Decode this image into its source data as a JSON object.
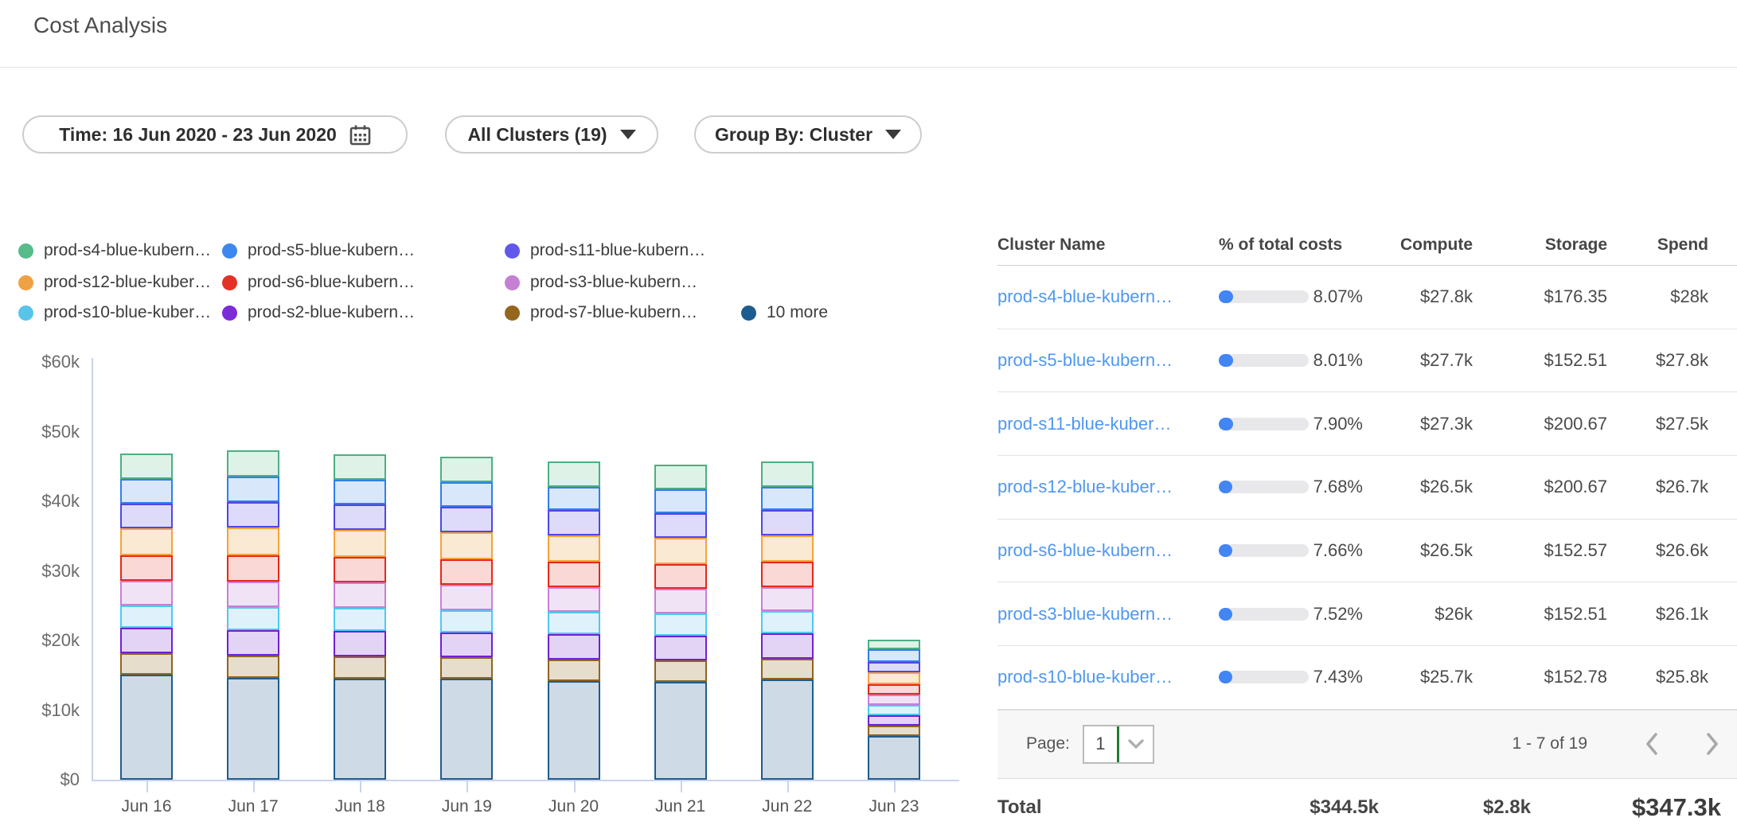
{
  "page": {
    "title": "Cost Analysis"
  },
  "filters": {
    "time": {
      "label": "Time: 16 Jun 2020 - 23 Jun 2020",
      "icon": "calendar-icon"
    },
    "clusters": {
      "label": "All Clusters (19)",
      "icon": "triangle-down-icon"
    },
    "group_by": {
      "label": "Group By: Cluster",
      "icon": "triangle-down-icon"
    }
  },
  "colors": {
    "link_blue": "#4e97f0",
    "progress_fill": "#4285f4",
    "progress_track": "#e8e8ea",
    "axis_line": "#c9d3ee",
    "select_divider_green": "#1e7e34",
    "pagination_bg": "#f7f7f7"
  },
  "chart_data": {
    "type": "bar",
    "stacked": true,
    "title": "",
    "xlabel": "",
    "ylabel": "",
    "x": [
      "Jun 16",
      "Jun 17",
      "Jun 18",
      "Jun 19",
      "Jun 20",
      "Jun 21",
      "Jun 22",
      "Jun 23"
    ],
    "y_ticks": [
      "$0",
      "$10k",
      "$20k",
      "$30k",
      "$40k",
      "$50k",
      "$60k"
    ],
    "ylim": [
      0,
      60000
    ],
    "grid": false,
    "legend_position": "top-left",
    "units": "USD thousands per day",
    "legend": [
      {
        "label": "prod-s4-blue-kubern…",
        "color": "#57bb8a"
      },
      {
        "label": "prod-s5-blue-kubern…",
        "color": "#3d87ee"
      },
      {
        "label": "prod-s11-blue-kubern…",
        "color": "#6158ea"
      },
      {
        "label": "prod-s12-blue-kuber…",
        "color": "#f0a143"
      },
      {
        "label": "prod-s6-blue-kubern…",
        "color": "#e33225"
      },
      {
        "label": "prod-s3-blue-kubern…",
        "color": "#c57fd3"
      },
      {
        "label": "prod-s10-blue-kuber…",
        "color": "#58c4ea"
      },
      {
        "label": "prod-s2-blue-kubern…",
        "color": "#7c2bd9"
      },
      {
        "label": "prod-s7-blue-kubern…",
        "color": "#95661e"
      },
      {
        "label": "10 more",
        "color": "#1d5c8f"
      }
    ],
    "series_note": "values in $k per day, listed bottom-to-top of stack",
    "series": [
      {
        "name": "10 more",
        "color": "#1f5c8c",
        "fill": "#cedae5",
        "values": [
          15.1,
          14.6,
          14.5,
          14.5,
          14.2,
          14.1,
          14.4,
          6.3
        ]
      },
      {
        "name": "prod-s7-blue-kubern…",
        "color": "#8f6420",
        "fill": "#e6ddcc",
        "values": [
          3.1,
          3.2,
          3.2,
          3.1,
          3.1,
          3.0,
          3.0,
          1.5
        ]
      },
      {
        "name": "prod-s2-blue-kubern…",
        "color": "#6f21d3",
        "fill": "#e3d4f6",
        "values": [
          3.6,
          3.7,
          3.7,
          3.6,
          3.6,
          3.6,
          3.6,
          1.5
        ]
      },
      {
        "name": "prod-s10-blue-kuber…",
        "color": "#4fc8ef",
        "fill": "#dff2fb",
        "values": [
          3.2,
          3.3,
          3.3,
          3.2,
          3.2,
          3.2,
          3.2,
          1.4
        ]
      },
      {
        "name": "prod-s3-blue-kubern…",
        "color": "#c77fd6",
        "fill": "#f1e3f6",
        "values": [
          3.6,
          3.7,
          3.6,
          3.6,
          3.6,
          3.5,
          3.5,
          1.5
        ]
      },
      {
        "name": "prod-s6-blue-kubern…",
        "color": "#e6281a",
        "fill": "#f9d8d5",
        "values": [
          3.6,
          3.7,
          3.7,
          3.7,
          3.6,
          3.6,
          3.6,
          1.5
        ]
      },
      {
        "name": "prod-s12-blue-kuber…",
        "color": "#f5a23b",
        "fill": "#fae9d3",
        "values": [
          3.9,
          4.0,
          3.9,
          3.9,
          3.8,
          3.8,
          3.8,
          1.7
        ]
      },
      {
        "name": "prod-s11-blue-kubern…",
        "color": "#4f46e5",
        "fill": "#dddbf9",
        "values": [
          3.6,
          3.7,
          3.7,
          3.6,
          3.6,
          3.5,
          3.6,
          1.5
        ]
      },
      {
        "name": "prod-s5-blue-kubern…",
        "color": "#2f7fee",
        "fill": "#d9e7fb",
        "values": [
          3.5,
          3.6,
          3.5,
          3.5,
          3.4,
          3.4,
          3.4,
          1.8
        ]
      },
      {
        "name": "prod-s4-blue-kubern…",
        "color": "#4caf82",
        "fill": "#dff2e7",
        "values": [
          3.7,
          3.8,
          3.7,
          3.7,
          3.6,
          3.6,
          3.6,
          1.4
        ]
      }
    ]
  },
  "table": {
    "columns": [
      "Cluster Name",
      "% of total costs",
      "Compute",
      "Storage",
      "Spend"
    ],
    "rows": [
      {
        "name": "prod-s4-blue-kubern…",
        "pct": "8.07%",
        "pct_value": 8.07,
        "compute": "$27.8k",
        "storage": "$176.35",
        "spend": "$28k"
      },
      {
        "name": "prod-s5-blue-kubern…",
        "pct": "8.01%",
        "pct_value": 8.01,
        "compute": "$27.7k",
        "storage": "$152.51",
        "spend": "$27.8k"
      },
      {
        "name": "prod-s11-blue-kuber…",
        "pct": "7.90%",
        "pct_value": 7.9,
        "compute": "$27.3k",
        "storage": "$200.67",
        "spend": "$27.5k"
      },
      {
        "name": "prod-s12-blue-kuber…",
        "pct": "7.68%",
        "pct_value": 7.68,
        "compute": "$26.5k",
        "storage": "$200.67",
        "spend": "$26.7k"
      },
      {
        "name": "prod-s6-blue-kubern…",
        "pct": "7.66%",
        "pct_value": 7.66,
        "compute": "$26.5k",
        "storage": "$152.57",
        "spend": "$26.6k"
      },
      {
        "name": "prod-s3-blue-kubern…",
        "pct": "7.52%",
        "pct_value": 7.52,
        "compute": "$26k",
        "storage": "$152.51",
        "spend": "$26.1k"
      },
      {
        "name": "prod-s10-blue-kuber…",
        "pct": "7.43%",
        "pct_value": 7.43,
        "compute": "$25.7k",
        "storage": "$152.78",
        "spend": "$25.8k"
      }
    ],
    "pagination": {
      "label": "Page:",
      "value": "1",
      "range": "1 - 7 of 19",
      "icons": [
        "chevron-down-icon",
        "chevron-left-icon",
        "chevron-right-icon"
      ]
    },
    "total": {
      "label": "Total",
      "compute": "$344.5k",
      "storage": "$2.8k",
      "spend": "$347.3k"
    }
  }
}
